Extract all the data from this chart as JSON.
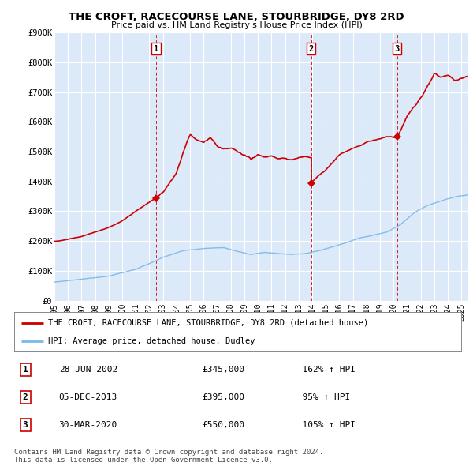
{
  "title_line1": "THE CROFT, RACECOURSE LANE, STOURBRIDGE, DY8 2RD",
  "title_line2": "Price paid vs. HM Land Registry's House Price Index (HPI)",
  "ylabel_ticks": [
    "£0",
    "£100K",
    "£200K",
    "£300K",
    "£400K",
    "£500K",
    "£600K",
    "£700K",
    "£800K",
    "£900K"
  ],
  "ytick_values": [
    0,
    100000,
    200000,
    300000,
    400000,
    500000,
    600000,
    700000,
    800000,
    900000
  ],
  "ylim": [
    0,
    900000
  ],
  "xlim_start": 1995.0,
  "xlim_end": 2025.5,
  "background_color": "#dce9f8",
  "plot_bg_color": "#dce9f8",
  "grid_color": "#ffffff",
  "hpi_line_color": "#7ab8e8",
  "price_line_color": "#cc0000",
  "sale_marker_color": "#cc0000",
  "dashed_line_color": "#cc0000",
  "transactions": [
    {
      "label": "1",
      "date_str": "28-JUN-2002",
      "date_x": 2002.49,
      "price": 345000,
      "pct": "162%",
      "dir": "↑"
    },
    {
      "label": "2",
      "date_str": "05-DEC-2013",
      "date_x": 2013.92,
      "price": 395000,
      "pct": "95%",
      "dir": "↑"
    },
    {
      "label": "3",
      "date_str": "30-MAR-2020",
      "date_x": 2020.25,
      "price": 550000,
      "pct": "105%",
      "dir": "↑"
    }
  ],
  "legend_label_red": "THE CROFT, RACECOURSE LANE, STOURBRIDGE, DY8 2RD (detached house)",
  "legend_label_blue": "HPI: Average price, detached house, Dudley",
  "footnote": "Contains HM Land Registry data © Crown copyright and database right 2024.\nThis data is licensed under the Open Government Licence v3.0.",
  "xtick_years": [
    1995,
    1996,
    1997,
    1998,
    1999,
    2000,
    2001,
    2002,
    2003,
    2004,
    2005,
    2006,
    2007,
    2008,
    2009,
    2010,
    2011,
    2012,
    2013,
    2014,
    2015,
    2016,
    2017,
    2018,
    2019,
    2020,
    2021,
    2022,
    2023,
    2024,
    2025
  ],
  "hpi_keypoints": [
    [
      1995.0,
      62000
    ],
    [
      1997.0,
      72000
    ],
    [
      1999.0,
      82000
    ],
    [
      2001.0,
      105000
    ],
    [
      2003.0,
      145000
    ],
    [
      2004.5,
      168000
    ],
    [
      2006.0,
      175000
    ],
    [
      2007.5,
      178000
    ],
    [
      2008.5,
      165000
    ],
    [
      2009.5,
      155000
    ],
    [
      2010.5,
      162000
    ],
    [
      2011.5,
      158000
    ],
    [
      2012.5,
      155000
    ],
    [
      2013.5,
      158000
    ],
    [
      2014.5,
      168000
    ],
    [
      2015.5,
      180000
    ],
    [
      2016.5,
      195000
    ],
    [
      2017.5,
      210000
    ],
    [
      2018.5,
      220000
    ],
    [
      2019.5,
      230000
    ],
    [
      2020.5,
      255000
    ],
    [
      2021.5,
      295000
    ],
    [
      2022.5,
      320000
    ],
    [
      2023.5,
      335000
    ],
    [
      2024.5,
      348000
    ],
    [
      2025.5,
      355000
    ]
  ],
  "red_keypoints_seg1": [
    [
      1995.0,
      200000
    ],
    [
      1996.0,
      205000
    ],
    [
      1997.0,
      215000
    ],
    [
      1998.0,
      230000
    ],
    [
      1999.0,
      245000
    ],
    [
      2000.0,
      268000
    ],
    [
      2001.0,
      300000
    ],
    [
      2002.0,
      330000
    ],
    [
      2002.49,
      345000
    ]
  ],
  "red_keypoints_seg2": [
    [
      2002.49,
      345000
    ],
    [
      2003.0,
      365000
    ],
    [
      2004.0,
      430000
    ],
    [
      2004.5,
      500000
    ],
    [
      2005.0,
      560000
    ],
    [
      2005.5,
      540000
    ],
    [
      2006.0,
      530000
    ],
    [
      2006.5,
      545000
    ],
    [
      2007.0,
      520000
    ],
    [
      2007.5,
      510000
    ],
    [
      2008.0,
      515000
    ],
    [
      2008.5,
      500000
    ],
    [
      2009.0,
      490000
    ],
    [
      2009.5,
      475000
    ],
    [
      2010.0,
      490000
    ],
    [
      2010.5,
      480000
    ],
    [
      2011.0,
      488000
    ],
    [
      2011.5,
      475000
    ],
    [
      2012.0,
      480000
    ],
    [
      2012.5,
      472000
    ],
    [
      2013.0,
      480000
    ],
    [
      2013.5,
      485000
    ],
    [
      2013.92,
      480000
    ]
  ],
  "red_keypoints_seg3": [
    [
      2013.92,
      395000
    ],
    [
      2014.0,
      400000
    ],
    [
      2014.5,
      420000
    ],
    [
      2015.0,
      440000
    ],
    [
      2015.5,
      465000
    ],
    [
      2016.0,
      490000
    ],
    [
      2016.5,
      500000
    ],
    [
      2017.0,
      510000
    ],
    [
      2017.5,
      520000
    ],
    [
      2018.0,
      530000
    ],
    [
      2018.5,
      540000
    ],
    [
      2019.0,
      545000
    ],
    [
      2019.5,
      550000
    ],
    [
      2020.0,
      548000
    ],
    [
      2020.25,
      550000
    ]
  ],
  "red_keypoints_seg4": [
    [
      2020.25,
      550000
    ],
    [
      2020.5,
      570000
    ],
    [
      2021.0,
      620000
    ],
    [
      2021.5,
      650000
    ],
    [
      2022.0,
      680000
    ],
    [
      2022.5,
      720000
    ],
    [
      2023.0,
      760000
    ],
    [
      2023.5,
      750000
    ],
    [
      2024.0,
      755000
    ],
    [
      2024.5,
      740000
    ],
    [
      2025.0,
      745000
    ],
    [
      2025.5,
      750000
    ]
  ]
}
